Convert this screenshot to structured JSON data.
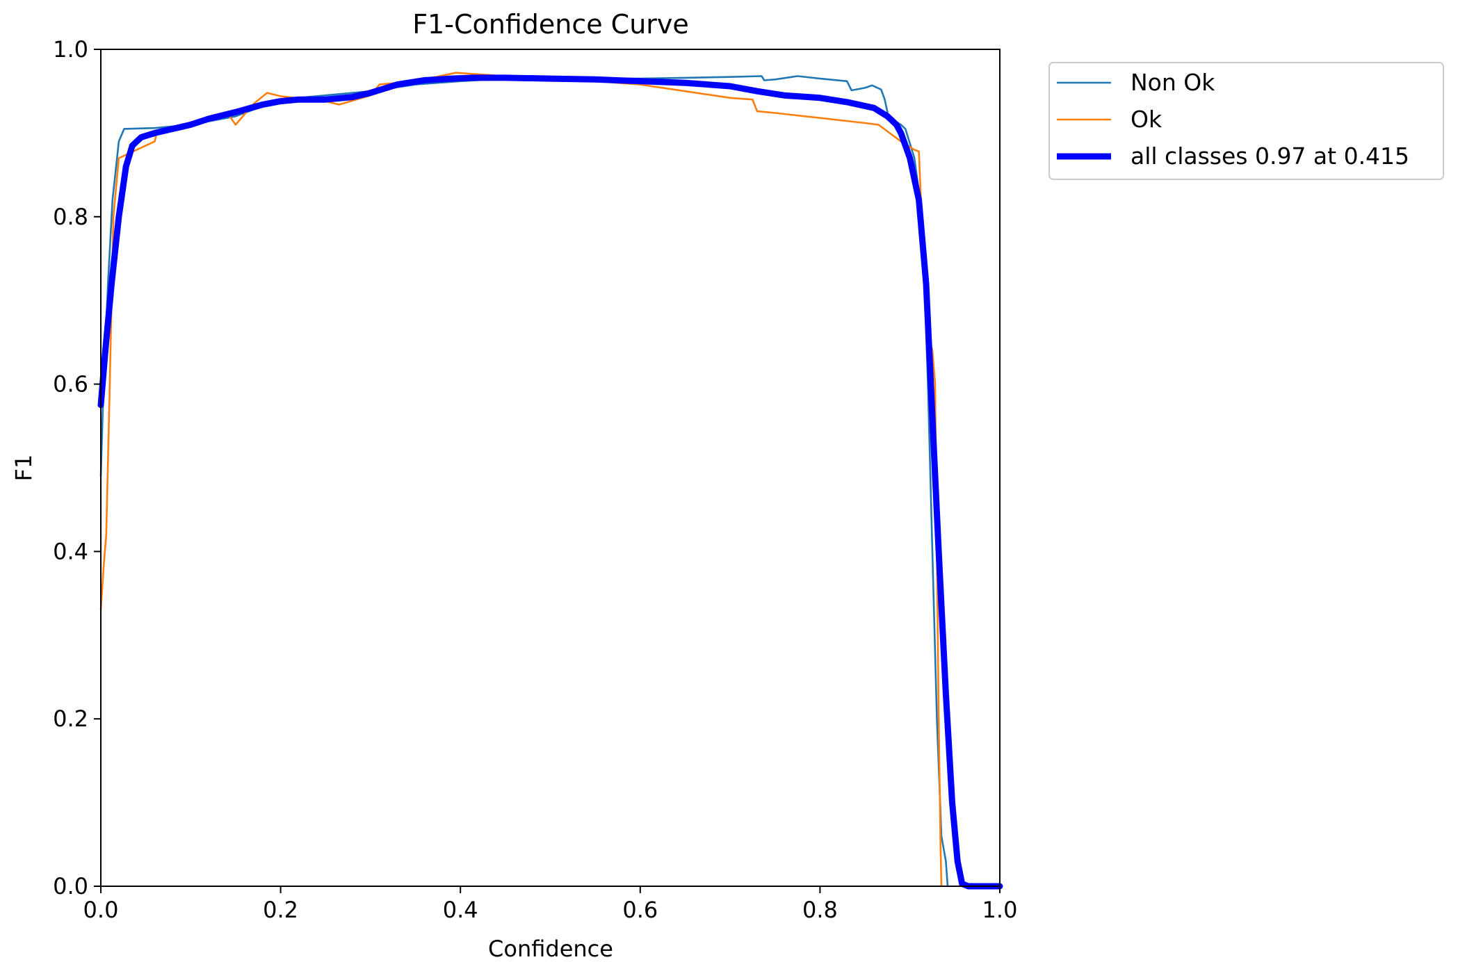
{
  "chart_data": {
    "type": "line",
    "title": "F1-Confidence Curve",
    "xlabel": "Confidence",
    "ylabel": "F1",
    "xlim": [
      0,
      1
    ],
    "ylim": [
      0,
      1
    ],
    "xticks": [
      "0.0",
      "0.2",
      "0.4",
      "0.6",
      "0.8",
      "1.0"
    ],
    "yticks": [
      "0.0",
      "0.2",
      "0.4",
      "0.6",
      "0.8",
      "1.0"
    ],
    "grid": false,
    "legend_position": "outside-top-right",
    "series": [
      {
        "name": "Non Ok",
        "color": "#1f77b4",
        "width": "thin",
        "points": [
          [
            0.0,
            0.49
          ],
          [
            0.003,
            0.6
          ],
          [
            0.008,
            0.72
          ],
          [
            0.013,
            0.82
          ],
          [
            0.02,
            0.89
          ],
          [
            0.026,
            0.905
          ],
          [
            0.06,
            0.906
          ],
          [
            0.1,
            0.91
          ],
          [
            0.15,
            0.92
          ],
          [
            0.2,
            0.94
          ],
          [
            0.25,
            0.945
          ],
          [
            0.3,
            0.95
          ],
          [
            0.35,
            0.958
          ],
          [
            0.4,
            0.962
          ],
          [
            0.45,
            0.965
          ],
          [
            0.5,
            0.965
          ],
          [
            0.55,
            0.965
          ],
          [
            0.6,
            0.965
          ],
          [
            0.65,
            0.966
          ],
          [
            0.7,
            0.967
          ],
          [
            0.735,
            0.968
          ],
          [
            0.738,
            0.963
          ],
          [
            0.75,
            0.964
          ],
          [
            0.775,
            0.968
          ],
          [
            0.8,
            0.965
          ],
          [
            0.83,
            0.962
          ],
          [
            0.835,
            0.951
          ],
          [
            0.85,
            0.954
          ],
          [
            0.858,
            0.957
          ],
          [
            0.868,
            0.952
          ],
          [
            0.872,
            0.94
          ],
          [
            0.876,
            0.92
          ],
          [
            0.882,
            0.915
          ],
          [
            0.89,
            0.91
          ],
          [
            0.895,
            0.905
          ],
          [
            0.905,
            0.87
          ],
          [
            0.91,
            0.83
          ],
          [
            0.915,
            0.76
          ],
          [
            0.92,
            0.6
          ],
          [
            0.925,
            0.4
          ],
          [
            0.93,
            0.2
          ],
          [
            0.935,
            0.06
          ],
          [
            0.94,
            0.03
          ],
          [
            0.942,
            0.0
          ]
        ]
      },
      {
        "name": "Ok",
        "color": "#ff7f0e",
        "width": "thin",
        "points": [
          [
            0.0,
            0.33
          ],
          [
            0.003,
            0.38
          ],
          [
            0.006,
            0.42
          ],
          [
            0.01,
            0.6
          ],
          [
            0.014,
            0.8
          ],
          [
            0.02,
            0.87
          ],
          [
            0.04,
            0.88
          ],
          [
            0.06,
            0.89
          ],
          [
            0.062,
            0.9
          ],
          [
            0.1,
            0.91
          ],
          [
            0.14,
            0.925
          ],
          [
            0.15,
            0.91
          ],
          [
            0.17,
            0.935
          ],
          [
            0.185,
            0.948
          ],
          [
            0.2,
            0.944
          ],
          [
            0.25,
            0.938
          ],
          [
            0.265,
            0.934
          ],
          [
            0.3,
            0.945
          ],
          [
            0.31,
            0.958
          ],
          [
            0.35,
            0.962
          ],
          [
            0.395,
            0.972
          ],
          [
            0.45,
            0.968
          ],
          [
            0.5,
            0.964
          ],
          [
            0.55,
            0.962
          ],
          [
            0.6,
            0.958
          ],
          [
            0.65,
            0.95
          ],
          [
            0.7,
            0.942
          ],
          [
            0.725,
            0.94
          ],
          [
            0.73,
            0.926
          ],
          [
            0.75,
            0.924
          ],
          [
            0.8,
            0.918
          ],
          [
            0.85,
            0.912
          ],
          [
            0.865,
            0.91
          ],
          [
            0.89,
            0.89
          ],
          [
            0.905,
            0.88
          ],
          [
            0.91,
            0.878
          ],
          [
            0.913,
            0.8
          ],
          [
            0.916,
            0.75
          ],
          [
            0.92,
            0.66
          ],
          [
            0.925,
            0.64
          ],
          [
            0.928,
            0.6
          ],
          [
            0.93,
            0.4
          ],
          [
            0.932,
            0.2
          ],
          [
            0.934,
            0.05
          ],
          [
            0.935,
            0.0
          ]
        ]
      },
      {
        "name": "all classes 0.97 at 0.415",
        "color": "#0000ff",
        "width": "thick",
        "points": [
          [
            0.0,
            0.575
          ],
          [
            0.005,
            0.64
          ],
          [
            0.012,
            0.72
          ],
          [
            0.02,
            0.8
          ],
          [
            0.028,
            0.86
          ],
          [
            0.035,
            0.885
          ],
          [
            0.045,
            0.895
          ],
          [
            0.06,
            0.9
          ],
          [
            0.08,
            0.905
          ],
          [
            0.1,
            0.91
          ],
          [
            0.12,
            0.917
          ],
          [
            0.15,
            0.925
          ],
          [
            0.18,
            0.934
          ],
          [
            0.2,
            0.938
          ],
          [
            0.22,
            0.94
          ],
          [
            0.25,
            0.94
          ],
          [
            0.28,
            0.943
          ],
          [
            0.3,
            0.948
          ],
          [
            0.33,
            0.958
          ],
          [
            0.36,
            0.963
          ],
          [
            0.39,
            0.965
          ],
          [
            0.415,
            0.966
          ],
          [
            0.45,
            0.966
          ],
          [
            0.5,
            0.965
          ],
          [
            0.55,
            0.964
          ],
          [
            0.6,
            0.962
          ],
          [
            0.65,
            0.96
          ],
          [
            0.7,
            0.956
          ],
          [
            0.73,
            0.95
          ],
          [
            0.76,
            0.945
          ],
          [
            0.8,
            0.942
          ],
          [
            0.83,
            0.937
          ],
          [
            0.86,
            0.93
          ],
          [
            0.875,
            0.92
          ],
          [
            0.885,
            0.91
          ],
          [
            0.89,
            0.9
          ],
          [
            0.9,
            0.87
          ],
          [
            0.91,
            0.82
          ],
          [
            0.918,
            0.72
          ],
          [
            0.925,
            0.56
          ],
          [
            0.932,
            0.4
          ],
          [
            0.94,
            0.23
          ],
          [
            0.947,
            0.1
          ],
          [
            0.953,
            0.03
          ],
          [
            0.958,
            0.003
          ],
          [
            0.965,
            0.0
          ],
          [
            1.0,
            0.0
          ]
        ]
      }
    ]
  }
}
